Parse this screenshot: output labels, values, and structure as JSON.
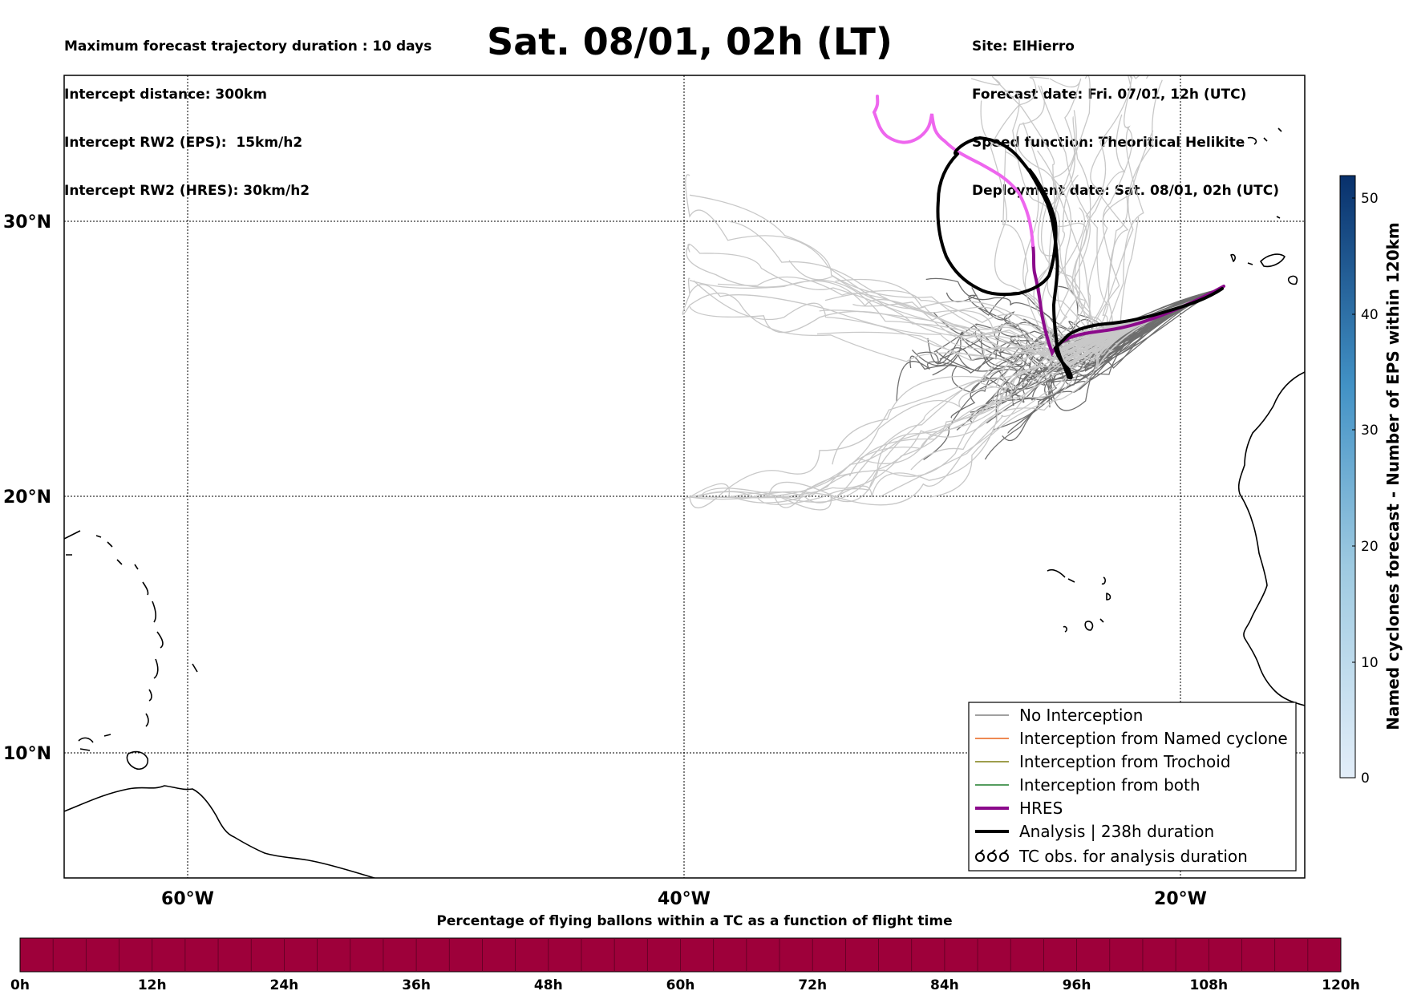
{
  "header": {
    "left_lines": [
      "Maximum forecast trajectory duration : 10 days",
      "Intercept distance: 300km",
      "Intercept RW2 (EPS):  15km/h2",
      "Intercept RW2 (HRES): 30km/h2"
    ],
    "title": "Sat. 08/01, 02h (LT)",
    "right_lines": [
      "Site: ElHierro",
      "Forecast date: Fri. 07/01, 12h (UTC)",
      "Speed function: Theoritical Helikite",
      "Deployment date: Sat. 08/01, 02h (UTC)"
    ]
  },
  "map": {
    "lon_range": [
      -65,
      15
    ],
    "lat_range": [
      5,
      35
    ],
    "lat_labels": [
      {
        "value": 30,
        "label": "30°N"
      },
      {
        "value": 20,
        "label": "20°N"
      },
      {
        "value": 10,
        "label": "10°N"
      }
    ],
    "lon_labels": [
      {
        "value": -60,
        "label": "60°W"
      },
      {
        "value": -40,
        "label": "40°W"
      },
      {
        "value": -20,
        "label": "20°W"
      }
    ],
    "launch_site": {
      "name": "ElHierro",
      "lon": -18.0,
      "lat": 27.7
    }
  },
  "legend": {
    "items": [
      {
        "label": "No Interception",
        "color": "#808080",
        "style": "thin"
      },
      {
        "label": "Interception from Named cyclone",
        "color": "#e8621a",
        "style": "thin"
      },
      {
        "label": "Interception from Trochoid",
        "color": "#7f7f12",
        "style": "thin"
      },
      {
        "label": "Interception from both",
        "color": "#1d7d2a",
        "style": "thin"
      },
      {
        "label": "HRES",
        "color": "#8b0a8b",
        "style": "thick"
      },
      {
        "label": "Analysis | 238h duration",
        "color": "#000000",
        "style": "thick"
      },
      {
        "label": "TC obs. for analysis duration",
        "color": "#000000",
        "style": "symbol"
      }
    ]
  },
  "colorbar_right": {
    "title": "Named cyclones forecast - Number of EPS within 120km",
    "ticks": [
      "0",
      "10",
      "20",
      "30",
      "40",
      "50"
    ],
    "color_low": "#e3eef9",
    "color_high": "#08306b"
  },
  "colorbar_bottom": {
    "title": "Percentage of flying ballons within a TC as a function of flight time",
    "ticks": [
      "0h",
      "12h",
      "24h",
      "36h",
      "48h",
      "60h",
      "72h",
      "84h",
      "96h",
      "108h",
      "120h"
    ],
    "fill_color": "#9e003a"
  },
  "colors": {
    "hres_early": "#ee66ee",
    "hres_late": "#8b0a8b",
    "analysis": "#000000",
    "eps_light": "#c8c8c8",
    "eps_dark": "#6e6e6e"
  }
}
